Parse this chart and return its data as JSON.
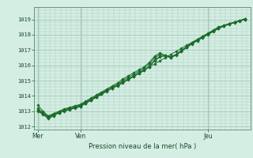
{
  "title": "",
  "xlabel": "Pression niveau de la mer( hPa )",
  "bg_color": "#d4eee4",
  "grid_color": "#aaccbb",
  "line_color": "#1a6b2a",
  "marker_color": "#1a6b2a",
  "yticks": [
    1012,
    1013,
    1014,
    1015,
    1016,
    1017,
    1018,
    1019
  ],
  "xtick_labels": [
    "Mer",
    "Ven",
    "Jeu"
  ],
  "xtick_positions": [
    0,
    24,
    96
  ],
  "xlim": [
    -2,
    120
  ],
  "ylim": [
    1011.8,
    1019.5
  ],
  "lines": [
    {
      "x": [
        0,
        3,
        6,
        9,
        12,
        15,
        18,
        21,
        24,
        27,
        30,
        33,
        36,
        39,
        42,
        45,
        48,
        51,
        54,
        57,
        60,
        63,
        66,
        69,
        72,
        75,
        78,
        81,
        84,
        87,
        90,
        93,
        96,
        99,
        102,
        105,
        108,
        111,
        114,
        117
      ],
      "y": [
        1013.0,
        1012.8,
        1012.5,
        1012.7,
        1012.9,
        1013.0,
        1013.1,
        1013.2,
        1013.3,
        1013.5,
        1013.7,
        1013.9,
        1014.1,
        1014.3,
        1014.5,
        1014.7,
        1014.9,
        1015.1,
        1015.3,
        1015.5,
        1015.7,
        1015.9,
        1016.1,
        1016.3,
        1016.5,
        1016.7,
        1016.9,
        1017.1,
        1017.3,
        1017.5,
        1017.7,
        1017.9,
        1018.1,
        1018.3,
        1018.5,
        1018.6,
        1018.7,
        1018.8,
        1018.9,
        1019.0
      ]
    },
    {
      "x": [
        0,
        3,
        6,
        9,
        12,
        15,
        18,
        21,
        24,
        27,
        30,
        33,
        36,
        39,
        42,
        45,
        48,
        51,
        54,
        57,
        60,
        63,
        66,
        69,
        72,
        75,
        78,
        81,
        84,
        87,
        90,
        93,
        96,
        99,
        102,
        105,
        108,
        111,
        114,
        117
      ],
      "y": [
        1013.1,
        1012.85,
        1012.6,
        1012.75,
        1012.9,
        1013.05,
        1013.15,
        1013.25,
        1013.35,
        1013.55,
        1013.75,
        1013.95,
        1014.15,
        1014.35,
        1014.5,
        1014.65,
        1014.85,
        1015.05,
        1015.25,
        1015.45,
        1015.65,
        1015.9,
        1016.3,
        1016.55,
        1016.65,
        1016.55,
        1016.7,
        1016.95,
        1017.2,
        1017.45,
        1017.65,
        1017.85,
        1018.05,
        1018.25,
        1018.45,
        1018.6,
        1018.72,
        1018.82,
        1018.92,
        1019.05
      ]
    },
    {
      "x": [
        0,
        3,
        6,
        9,
        12,
        15,
        18,
        21,
        24,
        27,
        30,
        33,
        36,
        39,
        42,
        45,
        48,
        51,
        54,
        57,
        60,
        63,
        66,
        69,
        72,
        75,
        78,
        81,
        84,
        87,
        90,
        93,
        96,
        99,
        102,
        105,
        108,
        111,
        114,
        117
      ],
      "y": [
        1013.2,
        1012.9,
        1012.65,
        1012.8,
        1012.95,
        1013.1,
        1013.2,
        1013.3,
        1013.4,
        1013.6,
        1013.8,
        1014.0,
        1014.2,
        1014.4,
        1014.6,
        1014.75,
        1015.0,
        1015.2,
        1015.4,
        1015.6,
        1015.8,
        1016.1,
        1016.5,
        1016.7,
        1016.6,
        1016.5,
        1016.65,
        1016.9,
        1017.15,
        1017.4,
        1017.6,
        1017.8,
        1018.0,
        1018.2,
        1018.4,
        1018.55,
        1018.68,
        1018.78,
        1018.88,
        1019.0
      ]
    },
    {
      "x": [
        0,
        3,
        6,
        9,
        12,
        15,
        18,
        21,
        24,
        27,
        30,
        33,
        36,
        39,
        42,
        45,
        48,
        51,
        54,
        57,
        60,
        63,
        66,
        69,
        72,
        75,
        78,
        81,
        84,
        87,
        90,
        93,
        96,
        99,
        102,
        105,
        108,
        111,
        114,
        117
      ],
      "y": [
        1013.4,
        1013.0,
        1012.7,
        1012.85,
        1013.0,
        1013.15,
        1013.25,
        1013.35,
        1013.45,
        1013.65,
        1013.85,
        1014.05,
        1014.25,
        1014.45,
        1014.65,
        1014.85,
        1015.1,
        1015.3,
        1015.5,
        1015.7,
        1015.9,
        1016.2,
        1016.6,
        1016.8,
        1016.65,
        1016.55,
        1016.7,
        1016.95,
        1017.2,
        1017.45,
        1017.65,
        1017.85,
        1018.05,
        1018.25,
        1018.45,
        1018.6,
        1018.72,
        1018.82,
        1018.92,
        1019.05
      ]
    },
    {
      "x": [
        0,
        3,
        6,
        9,
        12,
        15,
        18,
        21,
        24,
        27,
        30,
        33,
        36,
        39,
        42,
        45,
        48,
        51,
        54,
        57,
        60,
        63,
        66,
        69,
        72,
        75,
        78,
        81,
        84,
        87,
        90,
        93,
        96,
        99,
        102,
        105,
        108,
        111,
        114,
        117
      ],
      "y": [
        1013.05,
        1012.82,
        1012.58,
        1012.73,
        1012.88,
        1013.02,
        1013.12,
        1013.22,
        1013.32,
        1013.52,
        1013.72,
        1013.92,
        1014.12,
        1014.32,
        1014.52,
        1014.68,
        1014.88,
        1015.08,
        1015.28,
        1015.48,
        1015.68,
        1015.95,
        1016.35,
        1016.58,
        1016.62,
        1016.52,
        1016.68,
        1016.93,
        1017.18,
        1017.43,
        1017.63,
        1017.83,
        1018.03,
        1018.23,
        1018.43,
        1018.58,
        1018.7,
        1018.8,
        1018.9,
        1019.02
      ]
    }
  ]
}
